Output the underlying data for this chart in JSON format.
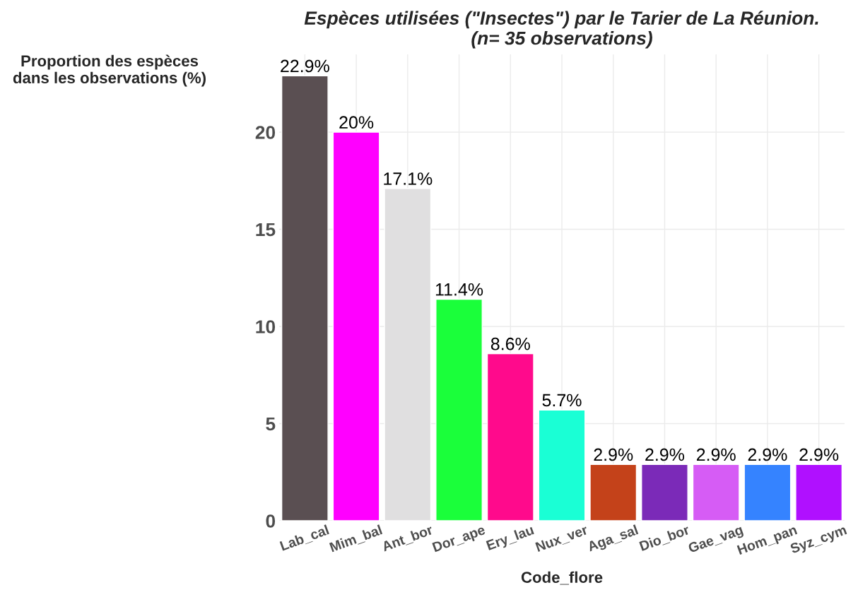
{
  "chart_data": {
    "type": "bar",
    "title": "Espèces utilisées (\"Insectes\") par le Tarier de La Réunion.\n(n= 35 observations)",
    "xlabel": "Code_flore",
    "ylabel": "Proportion des espèces\ndans les observations (%)",
    "categories": [
      "Lab_cal",
      "Mim_bal",
      "Ant_bor",
      "Dor_ape",
      "Ery_lau",
      "Nux_ver",
      "Aga_sal",
      "Dio_bor",
      "Gae_vag",
      "Hom_pan",
      "Syz_cym"
    ],
    "values": [
      22.9,
      20,
      17.1,
      11.4,
      8.6,
      5.7,
      2.9,
      2.9,
      2.9,
      2.9,
      2.9
    ],
    "value_labels": [
      "22.9%",
      "20%",
      "17.1%",
      "11.4%",
      "8.6%",
      "5.7%",
      "2.9%",
      "2.9%",
      "2.9%",
      "2.9%",
      "2.9%"
    ],
    "colors": [
      "#5a4f52",
      "#ff00ff",
      "#e0dfe0",
      "#1aff3a",
      "#ff0a8c",
      "#1affd5",
      "#c4421a",
      "#7b2ab8",
      "#d65cf5",
      "#3583ff",
      "#b010ff"
    ],
    "ylim": [
      0,
      24
    ],
    "yticks": [
      0,
      5,
      10,
      15,
      20
    ],
    "grid": true,
    "legend": false
  }
}
